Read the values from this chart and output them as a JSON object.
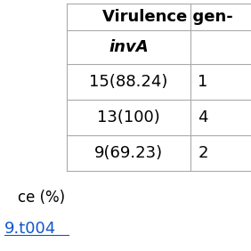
{
  "title_text": "Virulence gen-",
  "col_header": "invA",
  "rows": [
    "15(88.24)",
    "13(100)",
    "9(69.23)"
  ],
  "partial_col_values": [
    "1",
    "4",
    "2"
  ],
  "footer_label": "ce (%)",
  "footer_link": "9.t004",
  "bg_color": "#ffffff",
  "line_color": "#aaaaaa",
  "text_color": "#000000",
  "link_color": "#1155cc",
  "title_fontsize": 13,
  "header_fontsize": 13,
  "cell_fontsize": 13,
  "footer_fontsize": 12,
  "link_fontsize": 13
}
